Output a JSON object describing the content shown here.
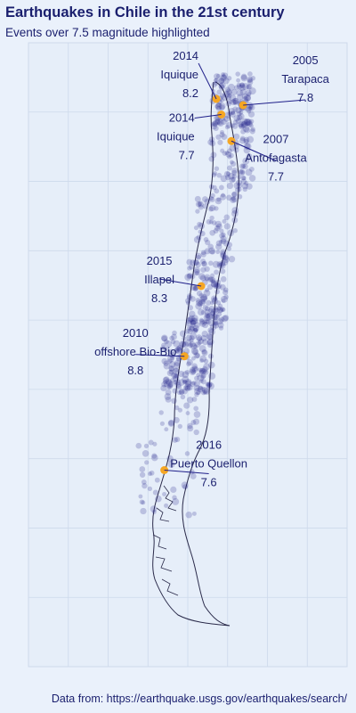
{
  "title": "Earthquakes in Chile in the 21st century",
  "subtitle": "Events over 7.5 magnitude highlighted",
  "caption": "Data from: https://earthquake.usgs.gov/earthquakes/search/",
  "colors": {
    "background": "#eaf1fb",
    "panel": "#e6eef9",
    "grid": "#cdd9eb",
    "quake": "#1f1f8a",
    "highlight": "#f5a623",
    "coast": "#2a2a4a",
    "text": "#1a1f6e"
  },
  "chart_data": {
    "type": "scatter",
    "title": "Earthquakes in Chile in the 21st century",
    "subtitle": "Events over 7.5 magnitude highlighted",
    "xlabel": "",
    "ylabel": "",
    "grid": true,
    "xlim": [
      -82,
      -63
    ],
    "ylim": [
      -56,
      -16
    ],
    "highlighted": [
      {
        "year": "2014",
        "place": "Iquique",
        "magnitude": "8.2",
        "lon": -70.8,
        "lat": -19.6
      },
      {
        "year": "2014",
        "place": "Iquique",
        "magnitude": "7.7",
        "lon": -70.5,
        "lat": -20.6
      },
      {
        "year": "2005",
        "place": "Tarapaca",
        "magnitude": "7.8",
        "lon": -69.2,
        "lat": -20.0
      },
      {
        "year": "2007",
        "place": "Antofagasta",
        "magnitude": "7.7",
        "lon": -69.9,
        "lat": -22.3
      },
      {
        "year": "2015",
        "place": "Illapel",
        "magnitude": "8.3",
        "lon": -71.7,
        "lat": -31.6
      },
      {
        "year": "2010",
        "place": "offshore Bio-Bio",
        "magnitude": "8.8",
        "lon": -72.7,
        "lat": -36.1
      },
      {
        "year": "2016",
        "place": "Puerto Quellon",
        "magnitude": "7.6",
        "lon": -73.9,
        "lat": -43.4
      }
    ]
  }
}
